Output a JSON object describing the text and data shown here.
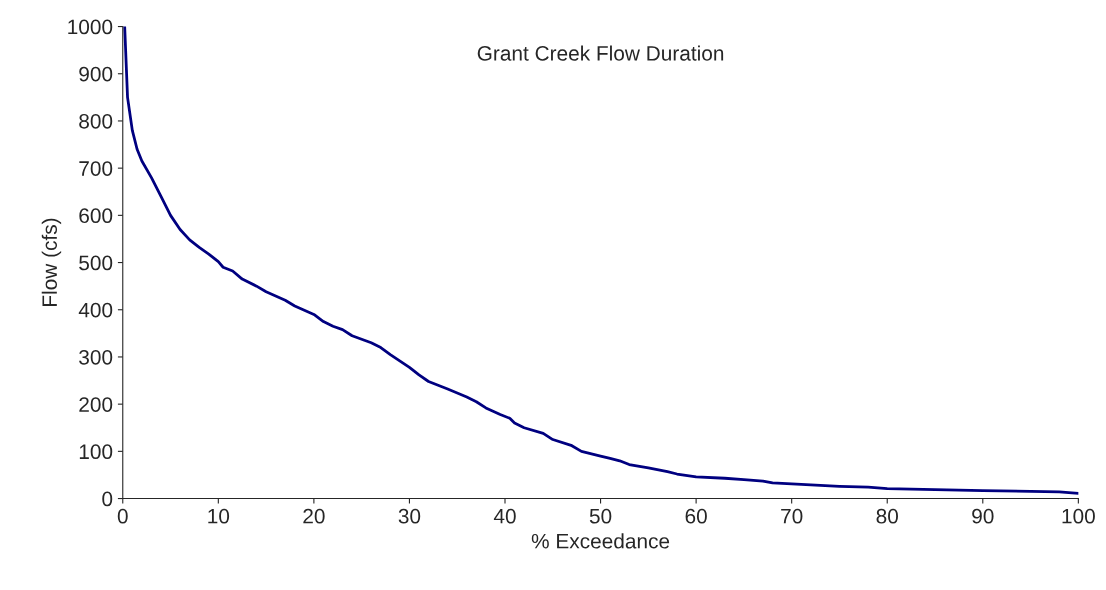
{
  "chart_data": {
    "type": "line",
    "title": "Grant Creek Flow Duration",
    "xlabel": "% Exceedance",
    "ylabel": "Flow (cfs)",
    "x": [
      0.2,
      0.5,
      1,
      1.5,
      2,
      3,
      4,
      5,
      6,
      7,
      8,
      9,
      10,
      10.5,
      11.5,
      12.5,
      14,
      15,
      17,
      18,
      20,
      21,
      22,
      23,
      24,
      26,
      27,
      28,
      30,
      31,
      32,
      34,
      36,
      37,
      38,
      39.5,
      40.5,
      41,
      42,
      44,
      45,
      47,
      48,
      50,
      51,
      52,
      53,
      55,
      57,
      58,
      60,
      63,
      65,
      67,
      68,
      70,
      72,
      75,
      78,
      80,
      85,
      90,
      95,
      98,
      100
    ],
    "series": [
      {
        "color": "#000080",
        "values": [
          1000,
          850,
          780,
          740,
          715,
          680,
          640,
          600,
          570,
          548,
          532,
          518,
          502,
          490,
          482,
          465,
          450,
          438,
          420,
          408,
          390,
          375,
          365,
          358,
          345,
          330,
          320,
          305,
          278,
          262,
          248,
          232,
          215,
          205,
          192,
          178,
          170,
          160,
          150,
          138,
          125,
          112,
          100,
          90,
          85,
          80,
          72,
          65,
          57,
          52,
          46,
          43,
          40,
          37,
          33,
          31,
          29,
          26,
          24,
          21,
          19,
          17,
          15,
          14,
          11
        ]
      }
    ],
    "xlim": [
      0,
      100
    ],
    "xticks": [
      0,
      10,
      20,
      30,
      40,
      50,
      60,
      70,
      80,
      90,
      100
    ],
    "ylim": [
      0,
      1000
    ],
    "yticks": [
      0,
      100,
      200,
      300,
      400,
      500,
      600,
      700,
      800,
      900,
      1000
    ],
    "grid": false,
    "legend": false,
    "marker": "none",
    "line_style": "solid"
  }
}
